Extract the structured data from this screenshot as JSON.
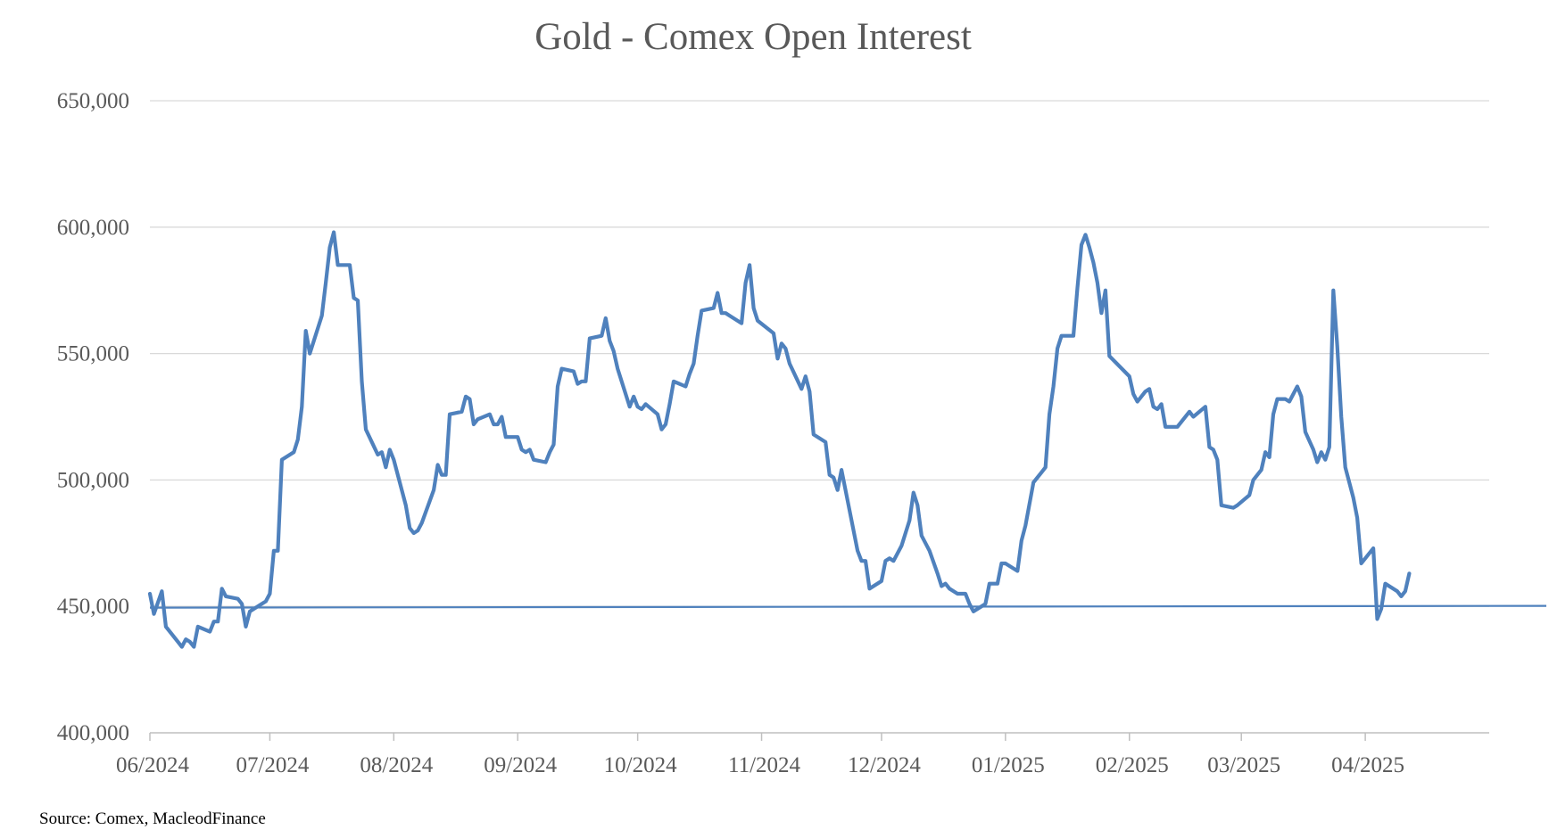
{
  "chart_data": {
    "type": "line",
    "title": "Gold - Comex Open Interest",
    "source": "Source: Comex,  MacleodFinance",
    "xlabel": "",
    "ylabel": "",
    "ylim": [
      400000,
      650000
    ],
    "y_ticks": [
      {
        "value": 400000,
        "label": "400,000"
      },
      {
        "value": 450000,
        "label": "450,000"
      },
      {
        "value": 500000,
        "label": "500,000"
      },
      {
        "value": 550000,
        "label": "550,000"
      },
      {
        "value": 600000,
        "label": "600,000"
      },
      {
        "value": 650000,
        "label": "650,000"
      }
    ],
    "x_range": [
      "2024-06-01",
      "2025-05-02"
    ],
    "x_ticks": [
      {
        "date": "2024-06-01",
        "label": "06/2024"
      },
      {
        "date": "2024-07-01",
        "label": "07/2024"
      },
      {
        "date": "2024-08-01",
        "label": "08/2024"
      },
      {
        "date": "2024-09-01",
        "label": "09/2024"
      },
      {
        "date": "2024-10-01",
        "label": "10/2024"
      },
      {
        "date": "2024-11-01",
        "label": "11/2024"
      },
      {
        "date": "2024-12-01",
        "label": "12/2024"
      },
      {
        "date": "2025-01-01",
        "label": "01/2025"
      },
      {
        "date": "2025-02-01",
        "label": "02/2025"
      },
      {
        "date": "2025-03-01",
        "label": "03/2025"
      },
      {
        "date": "2025-04-01",
        "label": "04/2025"
      }
    ],
    "grid": true,
    "legend": "none",
    "colors": {
      "series": "#4f81bd",
      "reference": "#4f81bd",
      "grid": "#d9d9d9",
      "text": "#595959"
    },
    "series": [
      {
        "role": "open-interest",
        "points": [
          [
            "2024-06-01",
            455000
          ],
          [
            "2024-06-02",
            447000
          ],
          [
            "2024-06-04",
            456000
          ],
          [
            "2024-06-05",
            442000
          ],
          [
            "2024-06-08",
            436000
          ],
          [
            "2024-06-09",
            434000
          ],
          [
            "2024-06-10",
            437000
          ],
          [
            "2024-06-11",
            436000
          ],
          [
            "2024-06-12",
            434000
          ],
          [
            "2024-06-13",
            442000
          ],
          [
            "2024-06-16",
            440000
          ],
          [
            "2024-06-17",
            444000
          ],
          [
            "2024-06-18",
            444000
          ],
          [
            "2024-06-19",
            457000
          ],
          [
            "2024-06-20",
            454000
          ],
          [
            "2024-06-23",
            453000
          ],
          [
            "2024-06-24",
            451000
          ],
          [
            "2024-06-25",
            442000
          ],
          [
            "2024-06-26",
            448000
          ],
          [
            "2024-06-27",
            449000
          ],
          [
            "2024-06-30",
            452000
          ],
          [
            "2024-07-01",
            455000
          ],
          [
            "2024-07-02",
            472000
          ],
          [
            "2024-07-03",
            472000
          ],
          [
            "2024-07-04",
            508000
          ],
          [
            "2024-07-07",
            511000
          ],
          [
            "2024-07-08",
            516000
          ],
          [
            "2024-07-09",
            529000
          ],
          [
            "2024-07-10",
            559000
          ],
          [
            "2024-07-11",
            550000
          ],
          [
            "2024-07-14",
            565000
          ],
          [
            "2024-07-15",
            578000
          ],
          [
            "2024-07-16",
            592000
          ],
          [
            "2024-07-17",
            598000
          ],
          [
            "2024-07-18",
            585000
          ],
          [
            "2024-07-21",
            585000
          ],
          [
            "2024-07-22",
            572000
          ],
          [
            "2024-07-23",
            571000
          ],
          [
            "2024-07-24",
            539000
          ],
          [
            "2024-07-25",
            520000
          ],
          [
            "2024-07-28",
            510000
          ],
          [
            "2024-07-29",
            511000
          ],
          [
            "2024-07-30",
            505000
          ],
          [
            "2024-07-31",
            512000
          ],
          [
            "2024-08-01",
            508000
          ],
          [
            "2024-08-04",
            490000
          ],
          [
            "2024-08-05",
            481000
          ],
          [
            "2024-08-06",
            479000
          ],
          [
            "2024-08-07",
            480000
          ],
          [
            "2024-08-08",
            483000
          ],
          [
            "2024-08-11",
            496000
          ],
          [
            "2024-08-12",
            506000
          ],
          [
            "2024-08-13",
            502000
          ],
          [
            "2024-08-14",
            502000
          ],
          [
            "2024-08-15",
            526000
          ],
          [
            "2024-08-18",
            527000
          ],
          [
            "2024-08-19",
            533000
          ],
          [
            "2024-08-20",
            532000
          ],
          [
            "2024-08-21",
            522000
          ],
          [
            "2024-08-22",
            524000
          ],
          [
            "2024-08-25",
            526000
          ],
          [
            "2024-08-26",
            522000
          ],
          [
            "2024-08-27",
            522000
          ],
          [
            "2024-08-28",
            525000
          ],
          [
            "2024-08-29",
            517000
          ],
          [
            "2024-09-01",
            517000
          ],
          [
            "2024-09-02",
            512000
          ],
          [
            "2024-09-03",
            511000
          ],
          [
            "2024-09-04",
            512000
          ],
          [
            "2024-09-05",
            508000
          ],
          [
            "2024-09-08",
            507000
          ],
          [
            "2024-09-09",
            511000
          ],
          [
            "2024-09-10",
            514000
          ],
          [
            "2024-09-11",
            537000
          ],
          [
            "2024-09-12",
            544000
          ],
          [
            "2024-09-15",
            543000
          ],
          [
            "2024-09-16",
            538000
          ],
          [
            "2024-09-17",
            539000
          ],
          [
            "2024-09-18",
            539000
          ],
          [
            "2024-09-19",
            556000
          ],
          [
            "2024-09-22",
            557000
          ],
          [
            "2024-09-23",
            564000
          ],
          [
            "2024-09-24",
            555000
          ],
          [
            "2024-09-25",
            551000
          ],
          [
            "2024-09-26",
            544000
          ],
          [
            "2024-09-29",
            529000
          ],
          [
            "2024-09-30",
            533000
          ],
          [
            "2024-10-01",
            529000
          ],
          [
            "2024-10-02",
            528000
          ],
          [
            "2024-10-03",
            530000
          ],
          [
            "2024-10-06",
            526000
          ],
          [
            "2024-10-07",
            520000
          ],
          [
            "2024-10-08",
            522000
          ],
          [
            "2024-10-09",
            530000
          ],
          [
            "2024-10-10",
            539000
          ],
          [
            "2024-10-13",
            537000
          ],
          [
            "2024-10-14",
            542000
          ],
          [
            "2024-10-15",
            546000
          ],
          [
            "2024-10-16",
            557000
          ],
          [
            "2024-10-17",
            567000
          ],
          [
            "2024-10-20",
            568000
          ],
          [
            "2024-10-21",
            574000
          ],
          [
            "2024-10-22",
            566000
          ],
          [
            "2024-10-23",
            566000
          ],
          [
            "2024-10-24",
            565000
          ],
          [
            "2024-10-27",
            562000
          ],
          [
            "2024-10-28",
            578000
          ],
          [
            "2024-10-29",
            585000
          ],
          [
            "2024-10-30",
            568000
          ],
          [
            "2024-10-31",
            563000
          ],
          [
            "2024-11-04",
            558000
          ],
          [
            "2024-11-05",
            548000
          ],
          [
            "2024-11-06",
            554000
          ],
          [
            "2024-11-07",
            552000
          ],
          [
            "2024-11-08",
            546000
          ],
          [
            "2024-11-11",
            536000
          ],
          [
            "2024-11-12",
            541000
          ],
          [
            "2024-11-13",
            535000
          ],
          [
            "2024-11-14",
            518000
          ],
          [
            "2024-11-17",
            515000
          ],
          [
            "2024-11-18",
            502000
          ],
          [
            "2024-11-19",
            501000
          ],
          [
            "2024-11-20",
            496000
          ],
          [
            "2024-11-21",
            504000
          ],
          [
            "2024-11-24",
            480000
          ],
          [
            "2024-11-25",
            472000
          ],
          [
            "2024-11-26",
            468000
          ],
          [
            "2024-11-27",
            468000
          ],
          [
            "2024-11-28",
            457000
          ],
          [
            "2024-12-01",
            460000
          ],
          [
            "2024-12-02",
            468000
          ],
          [
            "2024-12-03",
            469000
          ],
          [
            "2024-12-04",
            468000
          ],
          [
            "2024-12-06",
            474000
          ],
          [
            "2024-12-08",
            484000
          ],
          [
            "2024-12-09",
            495000
          ],
          [
            "2024-12-10",
            490000
          ],
          [
            "2024-12-11",
            478000
          ],
          [
            "2024-12-13",
            472000
          ],
          [
            "2024-12-15",
            463000
          ],
          [
            "2024-12-16",
            458000
          ],
          [
            "2024-12-17",
            459000
          ],
          [
            "2024-12-18",
            457000
          ],
          [
            "2024-12-20",
            455000
          ],
          [
            "2024-12-22",
            455000
          ],
          [
            "2024-12-23",
            451000
          ],
          [
            "2024-12-24",
            448000
          ],
          [
            "2024-12-26",
            450000
          ],
          [
            "2024-12-27",
            451000
          ],
          [
            "2024-12-28",
            459000
          ],
          [
            "2024-12-30",
            459000
          ],
          [
            "2024-12-31",
            467000
          ],
          [
            "2025-01-01",
            467000
          ],
          [
            "2025-01-04",
            464000
          ],
          [
            "2025-01-05",
            476000
          ],
          [
            "2025-01-06",
            482000
          ],
          [
            "2025-01-08",
            499000
          ],
          [
            "2025-01-10",
            503000
          ],
          [
            "2025-01-11",
            505000
          ],
          [
            "2025-01-12",
            526000
          ],
          [
            "2025-01-13",
            537000
          ],
          [
            "2025-01-14",
            552000
          ],
          [
            "2025-01-15",
            557000
          ],
          [
            "2025-01-18",
            557000
          ],
          [
            "2025-01-19",
            576000
          ],
          [
            "2025-01-20",
            593000
          ],
          [
            "2025-01-21",
            597000
          ],
          [
            "2025-01-22",
            592000
          ],
          [
            "2025-01-23",
            586000
          ],
          [
            "2025-01-24",
            578000
          ],
          [
            "2025-01-25",
            566000
          ],
          [
            "2025-01-26",
            575000
          ],
          [
            "2025-01-27",
            549000
          ],
          [
            "2025-02-01",
            541000
          ],
          [
            "2025-02-02",
            534000
          ],
          [
            "2025-02-03",
            531000
          ],
          [
            "2025-02-05",
            535000
          ],
          [
            "2025-02-06",
            536000
          ],
          [
            "2025-02-07",
            529000
          ],
          [
            "2025-02-08",
            528000
          ],
          [
            "2025-02-09",
            530000
          ],
          [
            "2025-02-10",
            521000
          ],
          [
            "2025-02-13",
            521000
          ],
          [
            "2025-02-16",
            527000
          ],
          [
            "2025-02-17",
            525000
          ],
          [
            "2025-02-20",
            529000
          ],
          [
            "2025-02-21",
            513000
          ],
          [
            "2025-02-22",
            512000
          ],
          [
            "2025-02-23",
            508000
          ],
          [
            "2025-02-24",
            490000
          ],
          [
            "2025-02-27",
            489000
          ],
          [
            "2025-02-28",
            490000
          ],
          [
            "2025-03-03",
            494000
          ],
          [
            "2025-03-04",
            500000
          ],
          [
            "2025-03-06",
            504000
          ],
          [
            "2025-03-07",
            511000
          ],
          [
            "2025-03-08",
            509000
          ],
          [
            "2025-03-09",
            526000
          ],
          [
            "2025-03-10",
            532000
          ],
          [
            "2025-03-12",
            532000
          ],
          [
            "2025-03-13",
            531000
          ],
          [
            "2025-03-15",
            537000
          ],
          [
            "2025-03-16",
            533000
          ],
          [
            "2025-03-17",
            519000
          ],
          [
            "2025-03-19",
            512000
          ],
          [
            "2025-03-20",
            507000
          ],
          [
            "2025-03-21",
            511000
          ],
          [
            "2025-03-22",
            508000
          ],
          [
            "2025-03-23",
            513000
          ],
          [
            "2025-03-24",
            575000
          ],
          [
            "2025-03-25",
            553000
          ],
          [
            "2025-03-26",
            525000
          ],
          [
            "2025-03-27",
            505000
          ],
          [
            "2025-03-28",
            499000
          ],
          [
            "2025-03-29",
            493000
          ],
          [
            "2025-03-30",
            485000
          ],
          [
            "2025-03-31",
            467000
          ],
          [
            "2025-04-03",
            473000
          ],
          [
            "2025-04-04",
            445000
          ],
          [
            "2025-04-05",
            449000
          ],
          [
            "2025-04-06",
            459000
          ],
          [
            "2025-04-09",
            456000
          ],
          [
            "2025-04-10",
            454000
          ],
          [
            "2025-04-11",
            456000
          ],
          [
            "2025-04-12",
            463000
          ]
        ]
      },
      {
        "role": "reference-line",
        "points": [
          [
            "2024-06-01",
            449500
          ],
          [
            "2025-05-02",
            450200
          ]
        ]
      }
    ]
  }
}
